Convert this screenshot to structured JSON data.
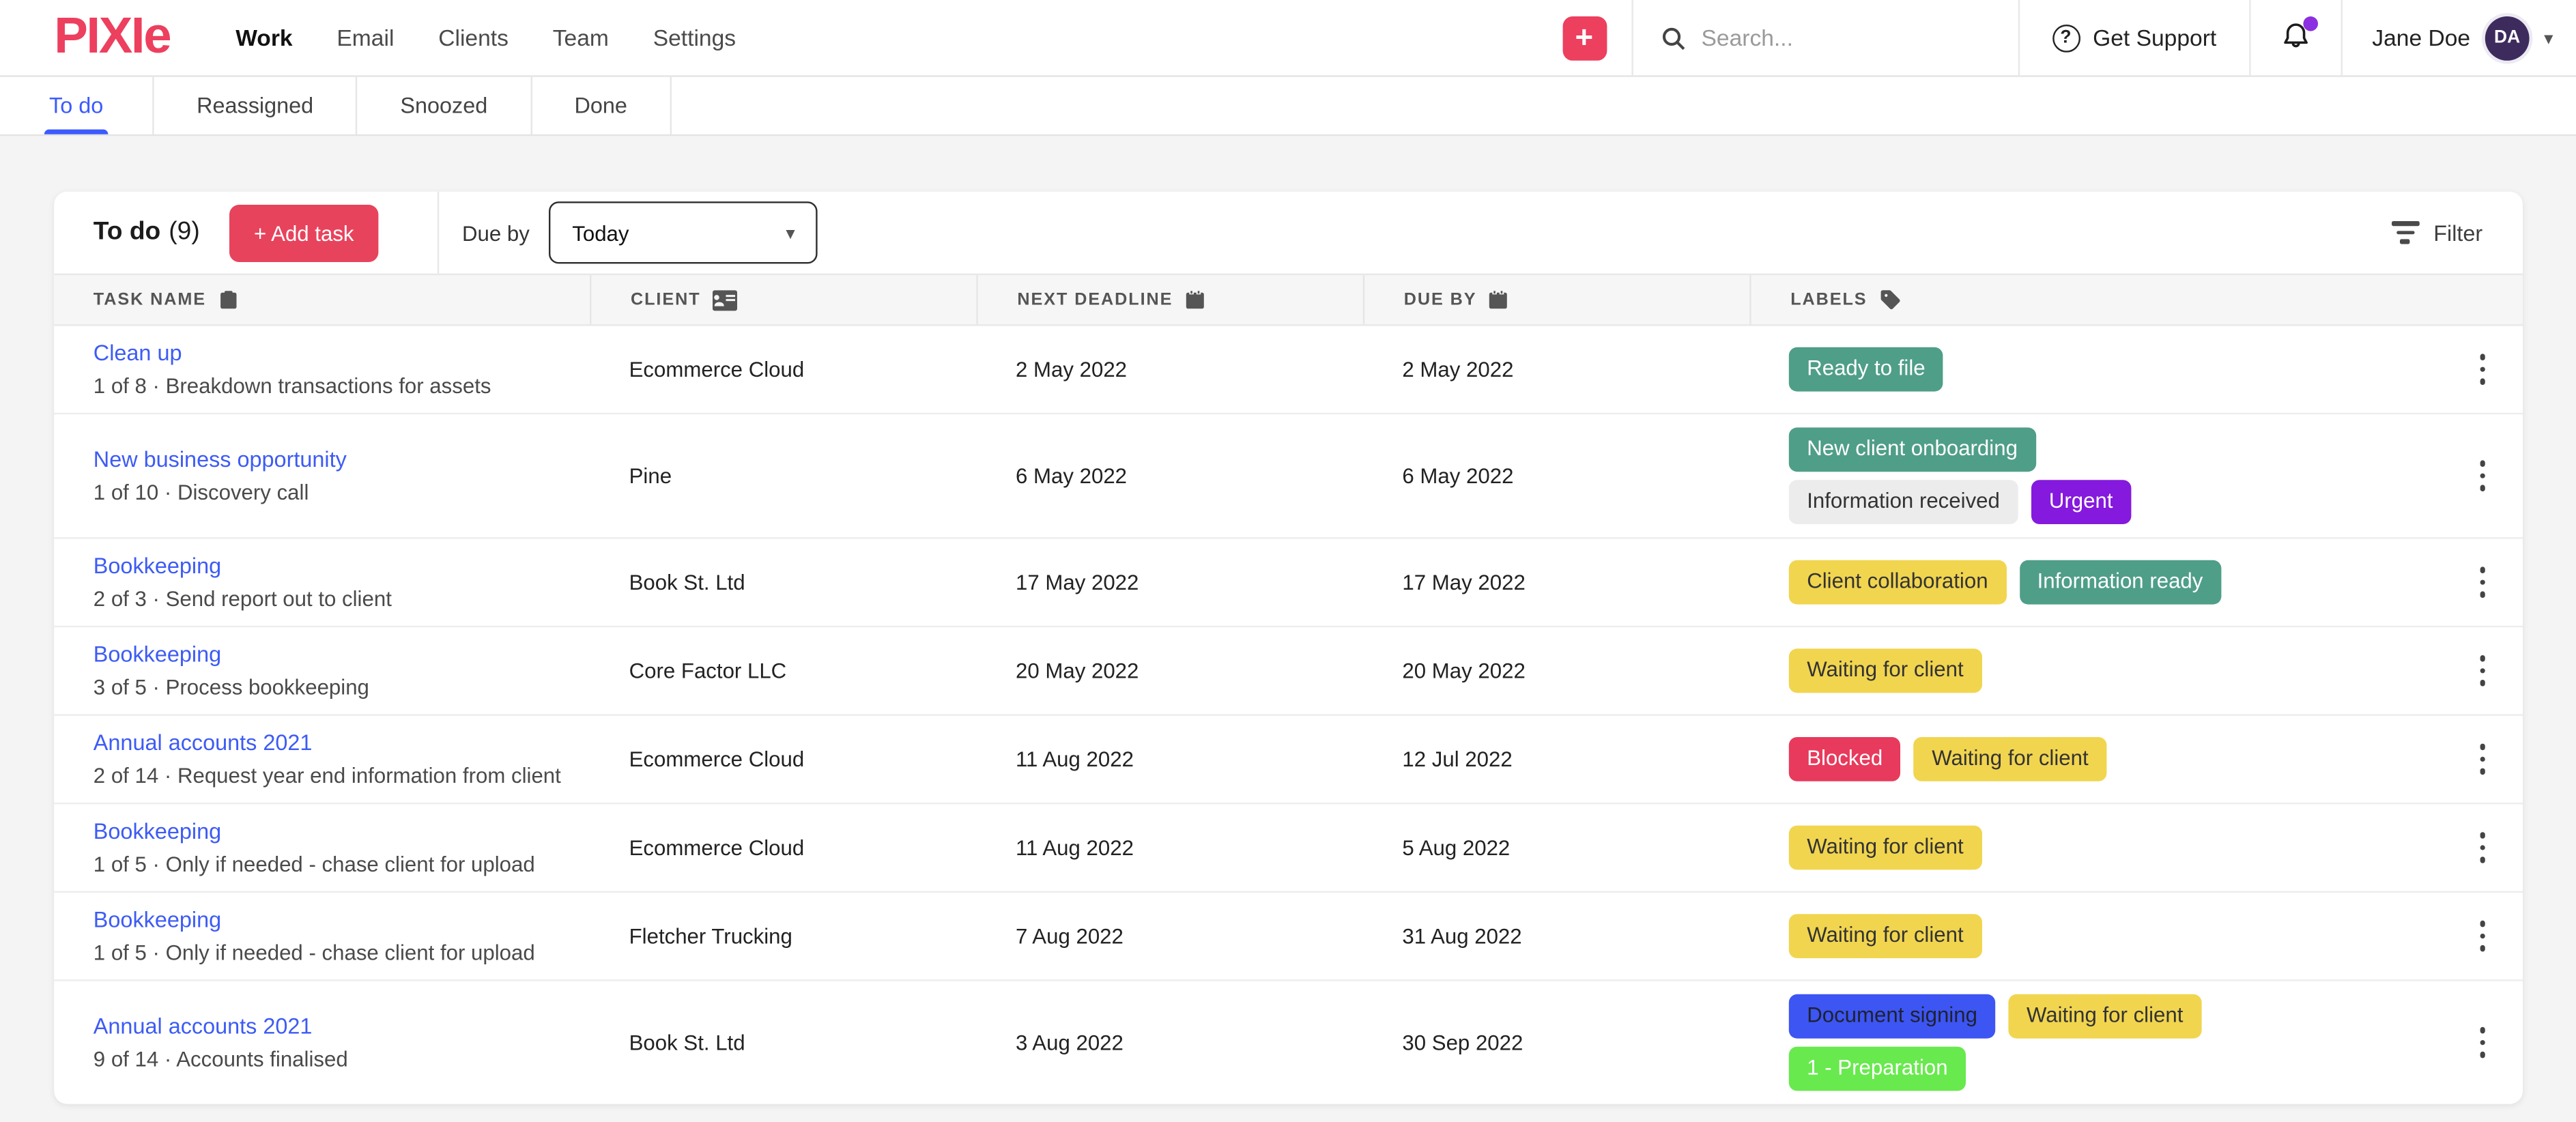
{
  "brand": {
    "logo": "PIXIe",
    "color": "#ED3F5E"
  },
  "nav": {
    "items": [
      {
        "label": "Work",
        "active": true
      },
      {
        "label": "Email"
      },
      {
        "label": "Clients"
      },
      {
        "label": "Team"
      },
      {
        "label": "Settings"
      }
    ]
  },
  "header": {
    "add_button": "+",
    "search_placeholder": "Search...",
    "get_support_label": "Get Support",
    "notification_dot_color": "#8B2FE0",
    "user_name": "Jane Doe",
    "avatar_initials": "DA",
    "avatar_color": "#3D2B5E"
  },
  "tabs": [
    {
      "label": "To do",
      "active": true
    },
    {
      "label": "Reassigned"
    },
    {
      "label": "Snoozed"
    },
    {
      "label": "Done"
    }
  ],
  "panel": {
    "title": "To do",
    "count": "(9)",
    "add_task_label": "+ Add task",
    "due_by_label": "Due by",
    "due_by_value": "Today",
    "filter_label": "Filter",
    "accent_color": "#E8435C",
    "active_tab_color": "#3B5BFD"
  },
  "table": {
    "columns": [
      {
        "label": "TASK NAME",
        "icon": "task-icon"
      },
      {
        "label": "CLIENT",
        "icon": "client-card-icon"
      },
      {
        "label": "NEXT DEADLINE",
        "icon": "calendar-icon"
      },
      {
        "label": "DUE BY",
        "icon": "calendar-icon"
      },
      {
        "label": "LABELS",
        "icon": "tag-icon"
      }
    ],
    "rows": [
      {
        "title": "Clean up",
        "subtitle": "1 of 8 · Breakdown transactions for assets",
        "client": "Ecommerce Cloud",
        "next_deadline": "2 May 2022",
        "due_by": "2 May 2022",
        "labels": [
          [
            {
              "text": "Ready to file",
              "color": "teal"
            }
          ]
        ]
      },
      {
        "title": "New business opportunity",
        "subtitle": "1 of 10 · Discovery call",
        "client": "Pine",
        "next_deadline": "6 May 2022",
        "due_by": "6 May 2022",
        "labels": [
          [
            {
              "text": "New client onboarding",
              "color": "teal"
            }
          ],
          [
            {
              "text": "Information received",
              "color": "gray"
            },
            {
              "text": "Urgent",
              "color": "purple"
            }
          ]
        ]
      },
      {
        "title": "Bookkeeping",
        "subtitle": "2 of 3 · Send report out to client",
        "client": "Book St. Ltd",
        "next_deadline": "17 May 2022",
        "due_by": "17 May 2022",
        "labels": [
          [
            {
              "text": "Client collaboration",
              "color": "yellow"
            },
            {
              "text": "Information ready",
              "color": "teal"
            }
          ]
        ]
      },
      {
        "title": "Bookkeeping",
        "subtitle": "3 of 5 · Process bookkeeping",
        "client": "Core Factor LLC",
        "next_deadline": "20 May 2022",
        "due_by": "20 May 2022",
        "labels": [
          [
            {
              "text": "Waiting for client",
              "color": "yellow"
            }
          ]
        ]
      },
      {
        "title": "Annual accounts 2021",
        "subtitle": "2 of 14 · Request year end information from client",
        "client": "Ecommerce Cloud",
        "next_deadline": "11 Aug 2022",
        "due_by": "12 Jul 2022",
        "labels": [
          [
            {
              "text": "Blocked",
              "color": "red"
            },
            {
              "text": "Waiting for client",
              "color": "yellow"
            }
          ]
        ]
      },
      {
        "title": "Bookkeeping",
        "subtitle": "1 of 5 · Only if needed - chase client for upload",
        "client": "Ecommerce Cloud",
        "next_deadline": "11 Aug 2022",
        "due_by": "5 Aug 2022",
        "labels": [
          [
            {
              "text": "Waiting for client",
              "color": "yellow"
            }
          ]
        ]
      },
      {
        "title": "Bookkeeping",
        "subtitle": "1 of 5 · Only if needed - chase client for upload",
        "client": "Fletcher Trucking",
        "next_deadline": "7 Aug 2022",
        "due_by": "31 Aug 2022",
        "labels": [
          [
            {
              "text": "Waiting for client",
              "color": "yellow"
            }
          ]
        ]
      },
      {
        "title": "Annual accounts 2021",
        "subtitle": "9 of 14 · Accounts finalised",
        "client": "Book St. Ltd",
        "next_deadline": "3 Aug 2022",
        "due_by": "30 Sep 2022",
        "labels": [
          [
            {
              "text": "Document signing",
              "color": "blue"
            },
            {
              "text": "Waiting for client",
              "color": "yellow"
            }
          ],
          [
            {
              "text": "1 - Preparation",
              "color": "green"
            }
          ]
        ]
      }
    ]
  },
  "label_colors": {
    "teal": {
      "bg": "#4F9E88",
      "fg": "#FFFFFF"
    },
    "gray": {
      "bg": "#ECECEC",
      "fg": "#333333"
    },
    "purple": {
      "bg": "#8519DD",
      "fg": "#FFFFFF"
    },
    "yellow": {
      "bg": "#F1D54F",
      "fg": "#333333"
    },
    "red": {
      "bg": "#E83A5C",
      "fg": "#FFFFFF"
    },
    "blue": {
      "bg": "#3D55F2",
      "fg": "#1E2230"
    },
    "green": {
      "bg": "#68E94E",
      "fg": "#FFFFFF"
    }
  }
}
